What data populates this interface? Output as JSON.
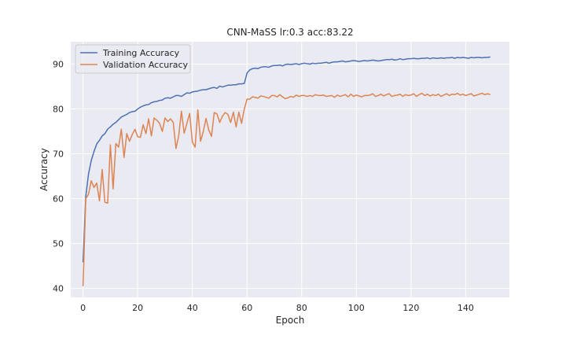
{
  "chart_data": {
    "type": "line",
    "title": "CNN-MaSS lr:0.3 acc:83.22",
    "xlabel": "Epoch",
    "ylabel": "Accuracy",
    "xlim": [
      -4.5,
      156
    ],
    "ylim": [
      38,
      95
    ],
    "xticks": [
      0,
      20,
      40,
      60,
      80,
      100,
      120,
      140
    ],
    "yticks": [
      40,
      50,
      60,
      70,
      80,
      90
    ],
    "grid": true,
    "legend_position": "top-left",
    "background": "#eaeaf2",
    "series": [
      {
        "name": "Training Accuracy",
        "color": "#4c72b0",
        "values": [
          45.8,
          60.5,
          65.5,
          68.5,
          70.5,
          72.2,
          73.0,
          74.0,
          74.5,
          75.5,
          76.0,
          76.6,
          77.0,
          77.6,
          78.2,
          78.5,
          78.8,
          79.2,
          79.4,
          79.5,
          80.0,
          80.4,
          80.7,
          80.9,
          81.0,
          81.4,
          81.6,
          81.7,
          81.9,
          82.0,
          82.4,
          82.5,
          82.4,
          82.7,
          83.0,
          83.0,
          82.8,
          83.2,
          83.6,
          83.5,
          83.8,
          83.9,
          84.0,
          84.2,
          84.3,
          84.3,
          84.5,
          84.7,
          84.8,
          84.6,
          85.1,
          84.9,
          85.1,
          85.3,
          85.3,
          85.4,
          85.4,
          85.6,
          85.6,
          85.7,
          88.0,
          88.7,
          89.0,
          89.1,
          89.0,
          89.3,
          89.4,
          89.4,
          89.3,
          89.6,
          89.7,
          89.7,
          89.8,
          89.6,
          89.9,
          90.0,
          89.9,
          90.0,
          90.1,
          89.9,
          90.1,
          90.2,
          90.1,
          90.0,
          90.2,
          90.1,
          90.2,
          90.2,
          90.3,
          90.4,
          90.2,
          90.4,
          90.5,
          90.5,
          90.6,
          90.7,
          90.5,
          90.6,
          90.7,
          90.8,
          90.7,
          90.6,
          90.7,
          90.8,
          90.7,
          90.8,
          90.9,
          90.8,
          90.7,
          90.8,
          90.9,
          91.0,
          91.0,
          91.1,
          90.9,
          91.0,
          91.2,
          91.0,
          91.1,
          91.2,
          91.2,
          91.3,
          91.2,
          91.2,
          91.3,
          91.3,
          91.4,
          91.2,
          91.4,
          91.3,
          91.3,
          91.4,
          91.3,
          91.4,
          91.4,
          91.5,
          91.3,
          91.5,
          91.4,
          91.5,
          91.4,
          91.3,
          91.5,
          91.4,
          91.5,
          91.5,
          91.4,
          91.5,
          91.5,
          91.6
        ]
      },
      {
        "name": "Validation Accuracy",
        "color": "#dd8452",
        "values": [
          40.5,
          60.0,
          61.0,
          64.0,
          62.5,
          63.5,
          59.5,
          66.5,
          59.2,
          59.0,
          72.0,
          62.2,
          72.3,
          71.5,
          75.5,
          69.2,
          74.5,
          72.8,
          74.3,
          75.5,
          73.8,
          73.7,
          76.5,
          74.5,
          77.8,
          74.0,
          78.0,
          77.5,
          76.8,
          75.0,
          78.0,
          77.2,
          77.8,
          77.0,
          71.2,
          74.0,
          79.5,
          74.6,
          76.8,
          79.0,
          72.6,
          71.5,
          79.8,
          72.8,
          75.0,
          77.9,
          75.3,
          73.9,
          79.2,
          78.9,
          77.0,
          78.4,
          79.2,
          78.8,
          77.0,
          79.3,
          76.0,
          79.3,
          76.8,
          80.0,
          82.2,
          82.2,
          82.7,
          82.6,
          82.4,
          82.9,
          82.8,
          82.6,
          82.4,
          83.0,
          83.0,
          82.7,
          83.2,
          82.7,
          82.3,
          82.5,
          82.8,
          82.6,
          83.1,
          82.8,
          83.0,
          83.0,
          82.8,
          83.0,
          82.8,
          83.2,
          83.0,
          83.0,
          83.1,
          82.8,
          82.9,
          83.0,
          82.6,
          83.1,
          82.8,
          83.0,
          83.2,
          82.7,
          83.3,
          82.8,
          83.1,
          82.9,
          82.7,
          83.0,
          83.0,
          83.1,
          83.4,
          82.8,
          83.0,
          83.3,
          82.9,
          83.2,
          83.4,
          82.8,
          83.0,
          83.1,
          83.3,
          82.8,
          83.2,
          83.0,
          83.1,
          83.4,
          82.8,
          83.2,
          83.5,
          83.0,
          83.3,
          82.9,
          83.2,
          83.0,
          83.3,
          82.8,
          83.1,
          83.4,
          83.0,
          83.3,
          83.2,
          83.5,
          83.1,
          83.3,
          83.0,
          83.2,
          83.4,
          82.9,
          83.1,
          83.3,
          83.5,
          83.2,
          83.4,
          83.2
        ]
      }
    ]
  }
}
